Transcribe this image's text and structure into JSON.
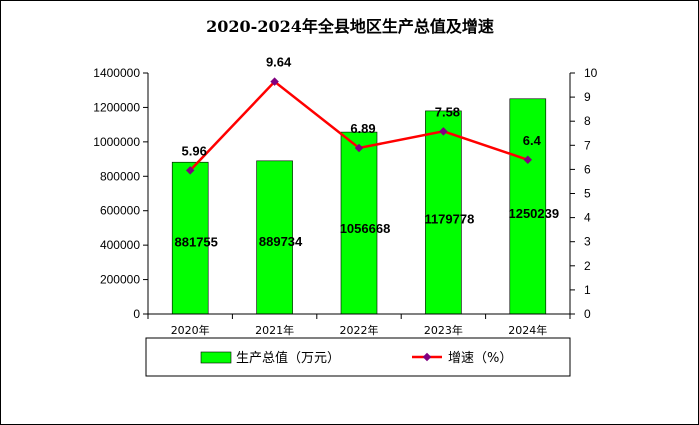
{
  "chart_data": {
    "type": "bar",
    "title": "2020-2024年全县地区生产总值及增速",
    "categories": [
      "2020年",
      "2021年",
      "2022年",
      "2023年",
      "2024年"
    ],
    "series": [
      {
        "name": "生产总值（万元）",
        "type": "bar",
        "axis": "left",
        "values": [
          881755,
          889734,
          1056668,
          1179778,
          1250239
        ],
        "color": "#00ff00"
      },
      {
        "name": "增速（%）",
        "type": "line",
        "axis": "right",
        "values": [
          5.96,
          9.64,
          6.89,
          7.58,
          6.4
        ],
        "color": "#ff0000",
        "marker_color": "#800080"
      }
    ],
    "y_left": {
      "min": 0,
      "max": 1400000,
      "step": 200000
    },
    "y_right": {
      "min": 0,
      "max": 10,
      "step": 1
    },
    "legend_position": "bottom",
    "grid": false
  }
}
